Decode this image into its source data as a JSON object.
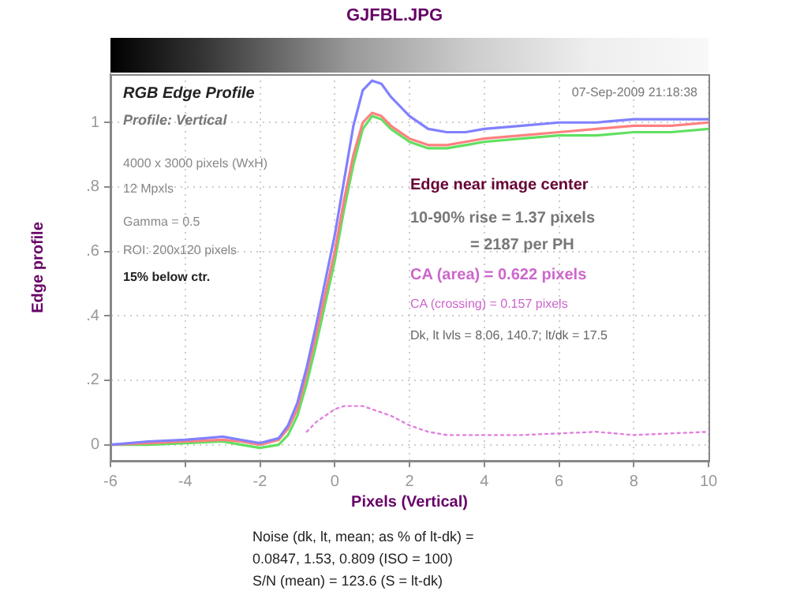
{
  "chart_data": {
    "type": "line",
    "title": "GJFBL.JPG",
    "xlabel": "Pixels (Vertical)",
    "ylabel": "Edge profile",
    "x": [
      -6,
      -5,
      -4,
      -3,
      -2.5,
      -2,
      -1.5,
      -1.25,
      -1,
      -0.75,
      -0.5,
      -0.25,
      0,
      0.25,
      0.5,
      0.75,
      1,
      1.25,
      1.5,
      2,
      2.5,
      3,
      3.5,
      4,
      5,
      6,
      7,
      8,
      9,
      10
    ],
    "series": [
      {
        "color": "#8080ff",
        "values": [
          0,
          0.01,
          0.015,
          0.025,
          0.015,
          0.005,
          0.02,
          0.06,
          0.13,
          0.24,
          0.37,
          0.51,
          0.65,
          0.82,
          0.99,
          1.1,
          1.13,
          1.12,
          1.08,
          1.02,
          0.98,
          0.97,
          0.97,
          0.98,
          0.99,
          1.0,
          1.0,
          1.01,
          1.01,
          1.01
        ]
      },
      {
        "color": "#ff8080",
        "values": [
          0,
          0.005,
          0.01,
          0.015,
          0.01,
          0.0,
          0.015,
          0.05,
          0.11,
          0.22,
          0.34,
          0.47,
          0.6,
          0.76,
          0.9,
          1.0,
          1.03,
          1.02,
          0.99,
          0.95,
          0.93,
          0.93,
          0.94,
          0.95,
          0.96,
          0.97,
          0.98,
          0.99,
          0.99,
          1.0
        ]
      },
      {
        "color": "#60e060",
        "values": [
          0,
          0.0,
          0.005,
          0.01,
          0.0,
          -0.01,
          0.0,
          0.03,
          0.09,
          0.19,
          0.31,
          0.44,
          0.57,
          0.73,
          0.87,
          0.98,
          1.02,
          1.01,
          0.98,
          0.94,
          0.92,
          0.92,
          0.93,
          0.94,
          0.95,
          0.96,
          0.96,
          0.97,
          0.97,
          0.98
        ]
      },
      {
        "color": "#e080e0",
        "line_style": "dotted",
        "values": [
          null,
          null,
          null,
          null,
          null,
          null,
          null,
          null,
          null,
          0.04,
          0.07,
          0.09,
          0.11,
          0.12,
          0.12,
          0.12,
          0.11,
          0.1,
          0.09,
          0.06,
          0.04,
          0.03,
          0.03,
          0.03,
          0.03,
          0.035,
          0.04,
          0.03,
          0.035,
          0.04
        ]
      }
    ],
    "xlim": [
      -6,
      10
    ],
    "xticks": [
      -6,
      -4,
      -2,
      0,
      2,
      4,
      6,
      8,
      10
    ],
    "ylim": [
      -0.05,
      1.15
    ],
    "yticks": [
      0,
      {
        "value": 0.2,
        "label": ".2"
      },
      {
        "value": 0.4,
        "label": ".4"
      },
      {
        "value": 0.6,
        "label": ".6"
      },
      {
        "value": 0.8,
        "label": ".8"
      },
      1
    ],
    "grid": true,
    "legend": false,
    "marker": "none",
    "line_style": "solid",
    "annotations": [
      "RGB Edge Profile",
      "Profile: Vertical",
      "07-Sep-2009 21:18:38",
      "4000 x 3000 pixels (WxH)",
      "12 Mpxls",
      "Gamma = 0.5",
      "ROI: 200x120 pixels",
      "15% below ctr.",
      "Edge near image center",
      "10-90% rise = 1.37 pixels",
      "= 2187 per PH",
      "CA (area) = 0.622 pixels",
      "CA (crossing) = 0.157 pixels",
      "Dk, lt lvls = 8.06, 140.7;  lt/dk = 17.5",
      "Noise (dk, lt, mean; as % of lt-dk) =",
      "0.0847,  1.53,  0.809  (ISO =  100)",
      "S/N (mean) = 123.6  (S = lt-dk)"
    ]
  }
}
